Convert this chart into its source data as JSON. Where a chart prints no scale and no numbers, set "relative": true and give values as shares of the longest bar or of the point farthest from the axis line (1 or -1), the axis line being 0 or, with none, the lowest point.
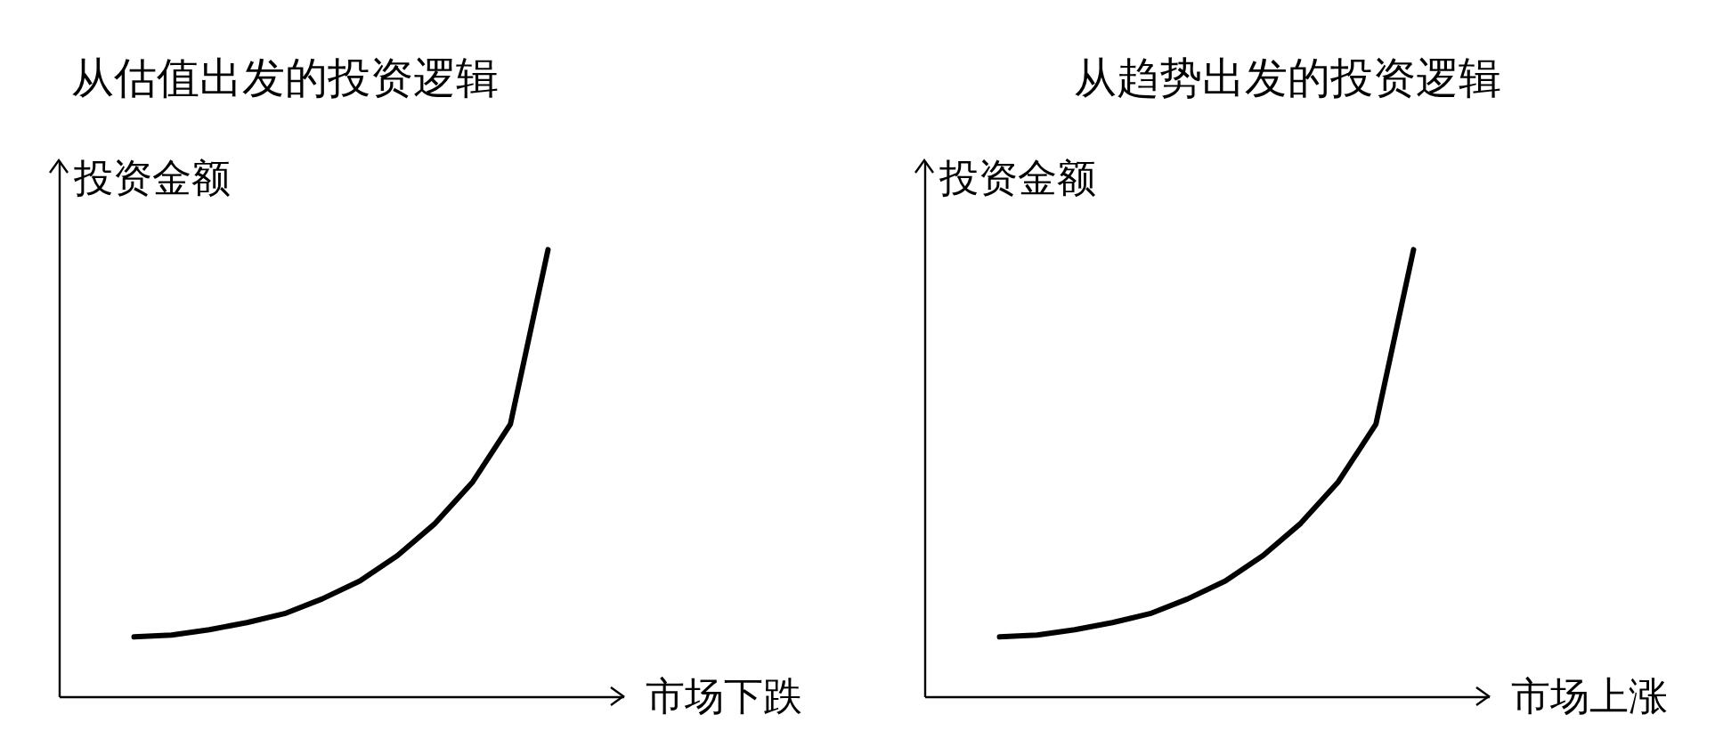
{
  "chart_data": [
    {
      "type": "line",
      "title": "从估值出发的投资逻辑",
      "xlabel": "市场下跌",
      "ylabel": "投资金额",
      "relative": true,
      "categories": [
        null,
        null,
        null,
        null,
        null,
        null,
        null,
        null,
        null,
        null,
        null,
        null
      ],
      "series": [
        {
          "color": "#000000",
          "values": [
            0.133,
            0.137,
            0.149,
            0.165,
            0.185,
            0.218,
            0.258,
            0.315,
            0.387,
            0.48,
            0.609,
            1
          ]
        }
      ]
    },
    {
      "type": "line",
      "title": "从趋势出发的投资逻辑",
      "xlabel": "市场上涨",
      "ylabel": "投资金额",
      "relative": true,
      "categories": [
        null,
        null,
        null,
        null,
        null,
        null,
        null,
        null,
        null,
        null,
        null,
        null
      ],
      "series": [
        {
          "color": "#000000",
          "values": [
            0.133,
            0.137,
            0.149,
            0.165,
            0.185,
            0.218,
            0.258,
            0.315,
            0.387,
            0.48,
            0.609,
            1
          ]
        }
      ]
    }
  ]
}
